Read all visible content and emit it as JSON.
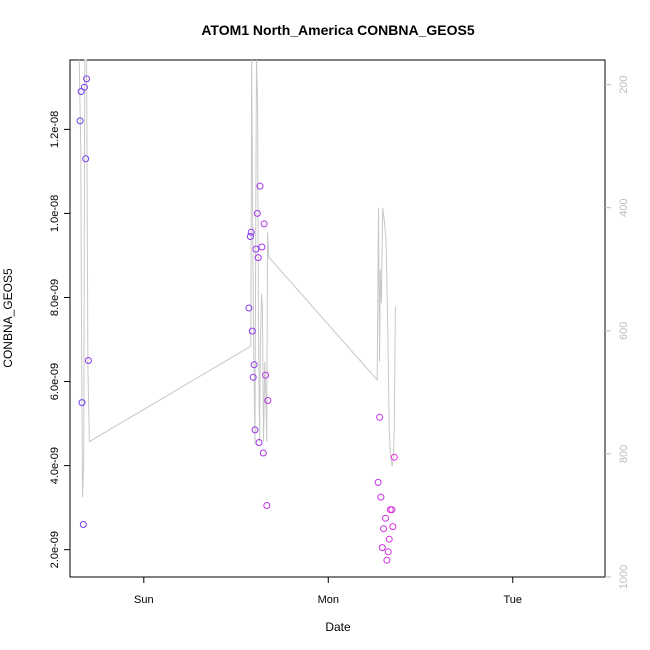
{
  "chart_data": {
    "type": "scatter",
    "title": "ATOM1 North_America CONBNA_GEOS5",
    "xlabel": "Date",
    "ylabel": "CONBNA_GEOS5",
    "x_ticks": [
      "Sun",
      "Mon",
      "Tue"
    ],
    "x_tick_positions": [
      0.5,
      1.5,
      2.5
    ],
    "xlim": [
      0.1,
      3.0
    ],
    "ylim": [
      1.35e-09,
      1.365e-08
    ],
    "y_ticks": [
      2e-09,
      4e-09,
      6e-09,
      8e-09,
      1e-08,
      1.2e-08
    ],
    "y_tick_labels": [
      "2.0e-09",
      "4.0e-09",
      "6.0e-09",
      "8.0e-09",
      "1.0e-08",
      "1.2e-08"
    ],
    "y2_ticks": [
      200,
      400,
      600,
      800,
      1000
    ],
    "y2_lim": [
      1000,
      160
    ],
    "grid": false,
    "colors": {
      "line": "#c8c8c8",
      "point_start": "#6a3df0",
      "point_end": "#e62ee0",
      "axis": "#000000",
      "right_axis": "#bdbdbd"
    },
    "series": [
      {
        "type": "points",
        "points": [
          [
            0.155,
            1.22e-08
          ],
          [
            0.16,
            1.29e-08
          ],
          [
            0.165,
            5.5e-09
          ],
          [
            0.172,
            2.6e-09
          ],
          [
            0.178,
            1.3e-08
          ],
          [
            0.185,
            1.13e-08
          ],
          [
            0.19,
            1.32e-08
          ],
          [
            0.2,
            6.5e-09
          ],
          [
            1.07,
            7.75e-09
          ],
          [
            1.078,
            9.45e-09
          ],
          [
            1.082,
            9.55e-09
          ],
          [
            1.088,
            7.2e-09
          ],
          [
            1.093,
            6.1e-09
          ],
          [
            1.098,
            6.4e-09
          ],
          [
            1.103,
            4.85e-09
          ],
          [
            1.108,
            9.15e-09
          ],
          [
            1.115,
            1e-08
          ],
          [
            1.12,
            8.95e-09
          ],
          [
            1.125,
            4.55e-09
          ],
          [
            1.13,
            1.065e-08
          ],
          [
            1.14,
            9.2e-09
          ],
          [
            1.148,
            4.3e-09
          ],
          [
            1.152,
            9.75e-09
          ],
          [
            1.16,
            6.15e-09
          ],
          [
            1.167,
            3.05e-09
          ],
          [
            1.172,
            5.55e-09
          ],
          [
            1.77,
            3.6e-09
          ],
          [
            1.778,
            5.15e-09
          ],
          [
            1.785,
            3.25e-09
          ],
          [
            1.793,
            2.05e-09
          ],
          [
            1.8,
            2.5e-09
          ],
          [
            1.81,
            2.75e-09
          ],
          [
            1.818,
            1.75e-09
          ],
          [
            1.825,
            1.95e-09
          ],
          [
            1.83,
            2.25e-09
          ],
          [
            1.836,
            2.95e-09
          ],
          [
            1.845,
            2.95e-09
          ],
          [
            1.85,
            2.55e-09
          ],
          [
            1.858,
            4.2e-09
          ]
        ]
      },
      {
        "type": "line",
        "axis": "right",
        "points": [
          [
            0.15,
            150
          ],
          [
            0.158,
            300
          ],
          [
            0.163,
            620
          ],
          [
            0.168,
            870
          ],
          [
            0.174,
            810
          ],
          [
            0.18,
            140
          ],
          [
            0.19,
            145
          ],
          [
            0.197,
            660
          ],
          [
            0.205,
            780
          ],
          [
            1.08,
            625
          ],
          [
            1.085,
            155
          ],
          [
            1.09,
            400
          ],
          [
            1.095,
            620
          ],
          [
            1.1,
            730
          ],
          [
            1.103,
            785
          ],
          [
            1.107,
            400
          ],
          [
            1.111,
            160
          ],
          [
            1.117,
            230
          ],
          [
            1.121,
            580
          ],
          [
            1.128,
            780
          ],
          [
            1.132,
            620
          ],
          [
            1.138,
            540
          ],
          [
            1.143,
            560
          ],
          [
            1.149,
            780
          ],
          [
            1.156,
            650
          ],
          [
            1.161,
            700
          ],
          [
            1.166,
            780
          ],
          [
            1.171,
            440
          ],
          [
            1.177,
            480
          ],
          [
            1.765,
            680
          ],
          [
            1.772,
            400
          ],
          [
            1.778,
            650
          ],
          [
            1.782,
            500
          ],
          [
            1.788,
            555
          ],
          [
            1.795,
            400
          ],
          [
            1.803,
            420
          ],
          [
            1.813,
            450
          ],
          [
            1.818,
            520
          ],
          [
            1.824,
            620
          ],
          [
            1.83,
            760
          ],
          [
            1.836,
            800
          ],
          [
            1.846,
            820
          ],
          [
            1.852,
            810
          ],
          [
            1.858,
            760
          ],
          [
            1.864,
            560
          ]
        ]
      }
    ]
  }
}
